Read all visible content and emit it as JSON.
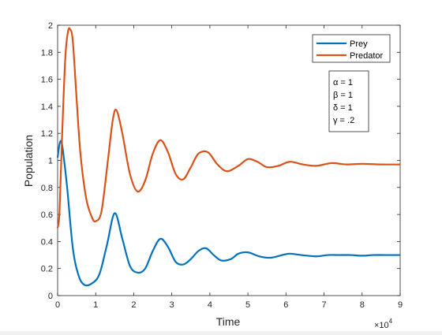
{
  "chart_data": {
    "type": "line",
    "title": "",
    "xlabel": "Time",
    "ylabel": "Population",
    "x_exponent_label": "×10",
    "x_exponent_power": "4",
    "xlim": [
      0,
      9
    ],
    "ylim": [
      0,
      2
    ],
    "x_ticks": [
      0,
      1,
      2,
      3,
      4,
      5,
      6,
      7,
      8,
      9
    ],
    "x_tick_labels": [
      "0",
      "1",
      "2",
      "3",
      "4",
      "5",
      "6",
      "7",
      "8",
      "9"
    ],
    "y_ticks": [
      0,
      0.2,
      0.4,
      0.6,
      0.8,
      1,
      1.2,
      1.4,
      1.6,
      1.8,
      2
    ],
    "y_tick_labels": [
      "0",
      "0.2",
      "0.4",
      "0.6",
      "0.8",
      "1",
      "1.2",
      "1.4",
      "1.6",
      "1.8",
      "2"
    ],
    "grid": false,
    "legend_position": "top-right",
    "series": [
      {
        "name": "Prey",
        "color": "#0072BD",
        "x": [
          0,
          0.05,
          0.1,
          0.15,
          0.25,
          0.4,
          0.55,
          0.7,
          0.9,
          1.1,
          1.3,
          1.5,
          1.7,
          1.9,
          2.1,
          2.3,
          2.5,
          2.7,
          2.9,
          3.1,
          3.3,
          3.5,
          3.7,
          3.9,
          4.1,
          4.3,
          4.55,
          4.75,
          5.0,
          5.3,
          5.6,
          5.9,
          6.1,
          6.4,
          6.8,
          7.1,
          7.4,
          7.7,
          8.0,
          8.3,
          8.6,
          9.0
        ],
        "y": [
          1.02,
          1.12,
          1.14,
          1.05,
          0.8,
          0.35,
          0.15,
          0.08,
          0.09,
          0.16,
          0.38,
          0.61,
          0.42,
          0.22,
          0.17,
          0.2,
          0.33,
          0.42,
          0.36,
          0.25,
          0.23,
          0.27,
          0.33,
          0.35,
          0.3,
          0.26,
          0.27,
          0.31,
          0.32,
          0.29,
          0.28,
          0.3,
          0.31,
          0.3,
          0.29,
          0.3,
          0.3,
          0.3,
          0.295,
          0.3,
          0.3,
          0.3
        ]
      },
      {
        "name": "Predator",
        "color": "#D95319",
        "x": [
          0,
          0.05,
          0.12,
          0.2,
          0.27,
          0.33,
          0.4,
          0.5,
          0.6,
          0.75,
          0.9,
          1.0,
          1.15,
          1.3,
          1.45,
          1.55,
          1.7,
          1.9,
          2.1,
          2.3,
          2.5,
          2.7,
          2.9,
          3.1,
          3.3,
          3.5,
          3.7,
          3.95,
          4.2,
          4.45,
          4.75,
          5.0,
          5.25,
          5.5,
          5.8,
          6.1,
          6.45,
          6.8,
          7.2,
          7.6,
          8.0,
          8.5,
          9.0
        ],
        "y": [
          0.5,
          0.62,
          1.2,
          1.75,
          1.95,
          1.97,
          1.88,
          1.45,
          1.05,
          0.72,
          0.58,
          0.55,
          0.62,
          0.95,
          1.3,
          1.37,
          1.2,
          0.9,
          0.77,
          0.85,
          1.05,
          1.15,
          1.06,
          0.9,
          0.86,
          0.95,
          1.05,
          1.06,
          0.97,
          0.92,
          0.96,
          1.01,
          0.99,
          0.95,
          0.96,
          0.99,
          0.97,
          0.96,
          0.98,
          0.97,
          0.975,
          0.97,
          0.97
        ]
      }
    ],
    "annotation_lines": [
      "α = 1",
      "β = 1",
      "δ = 1",
      "γ = .2"
    ]
  }
}
